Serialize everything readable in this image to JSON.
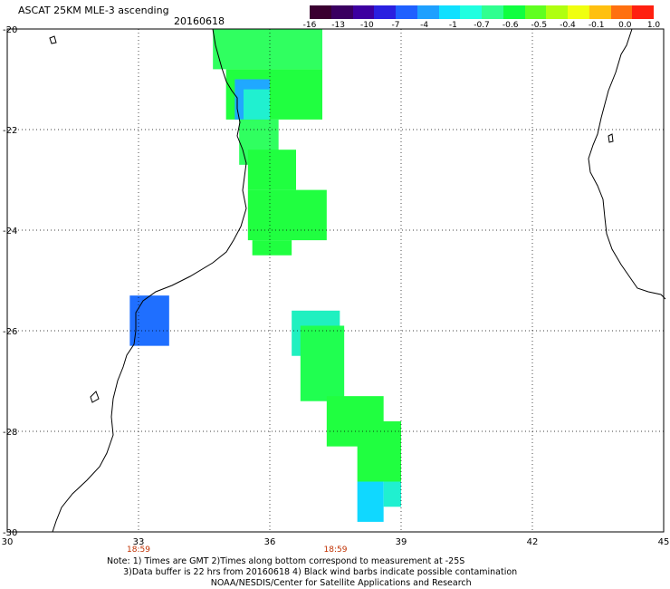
{
  "header": {
    "title": "ASCAT 25KM MLE-3 ascending",
    "date": "20160618"
  },
  "colorbar": {
    "colors": [
      "#3a0030",
      "#3a0060",
      "#3d00a0",
      "#2a20e0",
      "#1f60ff",
      "#1ea0ff",
      "#10e0ff",
      "#20ffe0",
      "#30ff90",
      "#10ff40",
      "#60ff20",
      "#b0ff10",
      "#f0ff10",
      "#ffc010",
      "#ff7010",
      "#ff2010"
    ],
    "labels": [
      "-16",
      "-13",
      "-10",
      "-7",
      "-4",
      "-1",
      "-0.7",
      "-0.6",
      "-0.5",
      "-0.4",
      "-0.1",
      "0.0",
      "1.0"
    ]
  },
  "map": {
    "lon_ticks": [
      "30",
      "33",
      "36",
      "39",
      "42",
      "45"
    ],
    "lat_ticks": [
      "-20",
      "-22",
      "-24",
      "-26",
      "-28",
      "-30"
    ],
    "lon_range": [
      30,
      45
    ],
    "lat_range": [
      -20,
      -30
    ],
    "times": [
      {
        "lon": 33,
        "label": "18:59"
      },
      {
        "lon": 37.5,
        "label": "18:59"
      }
    ],
    "swath_cells": [
      {
        "lon0": 34.7,
        "lon1": 37.2,
        "lat0": -20.0,
        "lat1": -20.8,
        "color": "#30ff60"
      },
      {
        "lon0": 35.0,
        "lon1": 37.2,
        "lat0": -20.8,
        "lat1": -21.8,
        "color": "#20ff40"
      },
      {
        "lon0": 35.2,
        "lon1": 36.0,
        "lat0": -21.0,
        "lat1": -21.8,
        "color": "#20a8ff"
      },
      {
        "lon0": 35.4,
        "lon1": 36.0,
        "lat0": -21.2,
        "lat1": -21.8,
        "color": "#20f0d0"
      },
      {
        "lon0": 35.3,
        "lon1": 36.2,
        "lat0": -21.8,
        "lat1": -22.7,
        "color": "#30ff60"
      },
      {
        "lon0": 35.5,
        "lon1": 36.6,
        "lat0": -22.4,
        "lat1": -23.2,
        "color": "#20ff40"
      },
      {
        "lon0": 35.5,
        "lon1": 37.3,
        "lat0": -23.2,
        "lat1": -24.2,
        "color": "#20ff40"
      },
      {
        "lon0": 35.6,
        "lon1": 36.5,
        "lat0": -24.2,
        "lat1": -24.5,
        "color": "#20ff40"
      },
      {
        "lon0": 32.8,
        "lon1": 33.7,
        "lat0": -25.3,
        "lat1": -26.3,
        "color": "#1f6fff"
      },
      {
        "lon0": 36.5,
        "lon1": 37.6,
        "lat0": -25.6,
        "lat1": -26.5,
        "color": "#20f0c0"
      },
      {
        "lon0": 36.7,
        "lon1": 37.7,
        "lat0": -25.9,
        "lat1": -27.4,
        "color": "#20ff50"
      },
      {
        "lon0": 37.3,
        "lon1": 38.6,
        "lat0": -27.3,
        "lat1": -28.3,
        "color": "#20ff40"
      },
      {
        "lon0": 38.0,
        "lon1": 39.0,
        "lat0": -27.8,
        "lat1": -29.0,
        "color": "#20ff40"
      },
      {
        "lon0": 38.0,
        "lon1": 38.6,
        "lat0": -29.0,
        "lat1": -29.8,
        "color": "#10d8ff"
      },
      {
        "lon0": 38.6,
        "lon1": 39.0,
        "lat0": -29.0,
        "lat1": -29.5,
        "color": "#20f0d0"
      }
    ]
  },
  "notes": {
    "line1": "Note: 1) Times are GMT 2)Times along bottom correspond to measurement at -25S",
    "line2": "      3)Data buffer is 22 hrs from 20160618 4) Black wind barbs indicate possible contamination",
    "line3": "                                      NOAA/NESDIS/Center for Satellite Applications and Research"
  }
}
